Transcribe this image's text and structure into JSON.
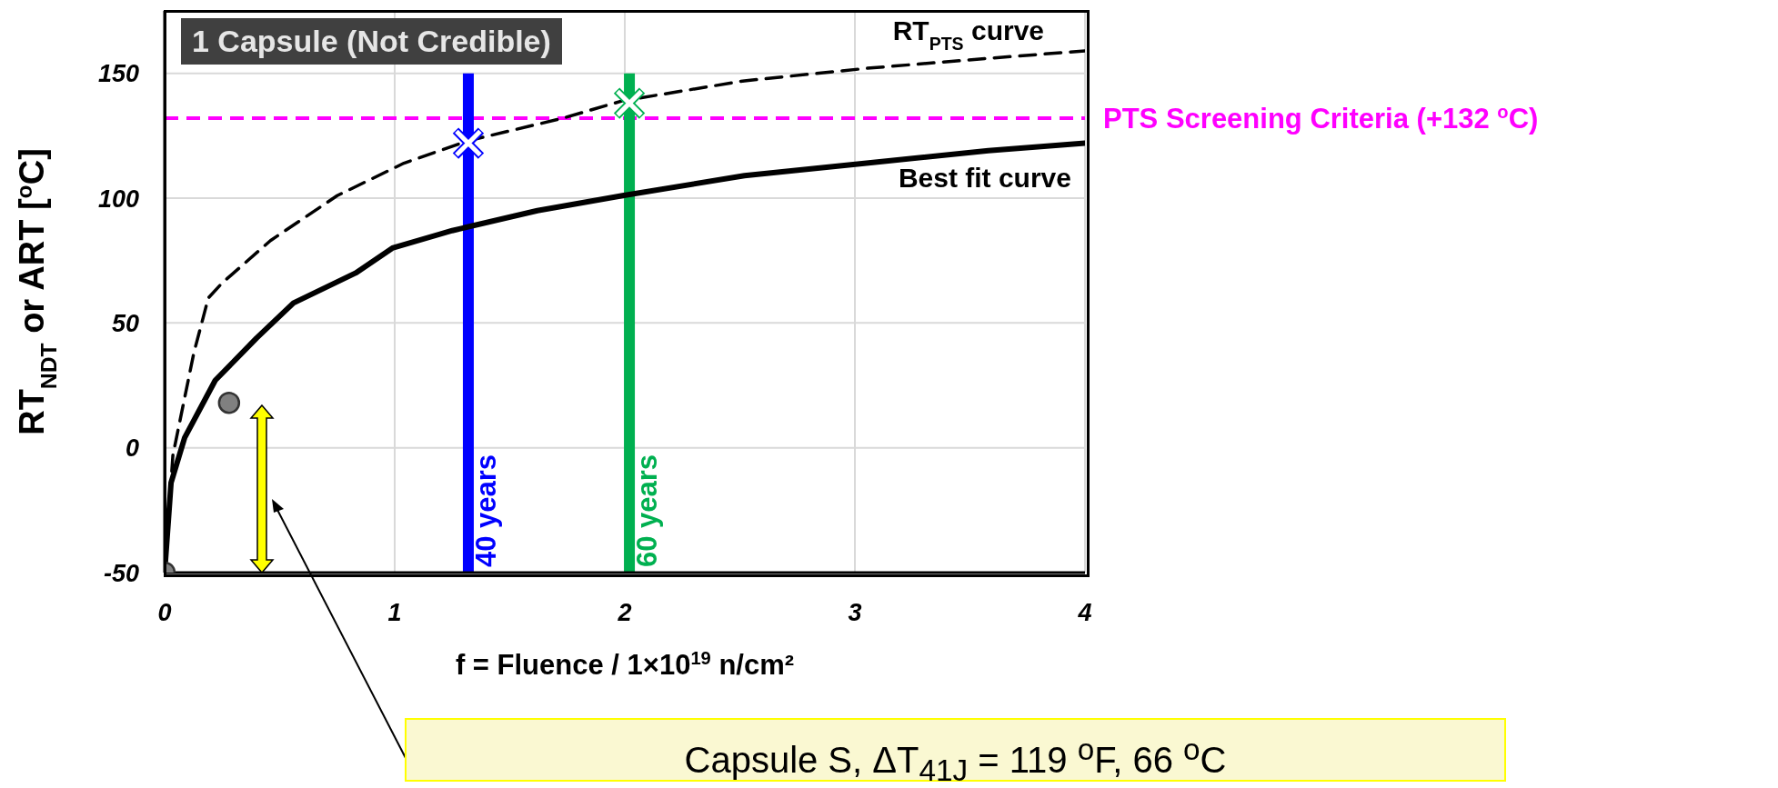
{
  "chart_data": {
    "type": "line",
    "xlabel": "f = Fluence / 1×10$^{19}$ n/cm²",
    "ylabel": "RT$_{NDT}$ or ART  [$^{o}$C]",
    "xlim": [
      0,
      4
    ],
    "xticks": [
      0,
      1,
      2,
      3,
      4
    ],
    "ylim": [
      -50,
      175
    ],
    "yticks": [
      -50,
      0,
      50,
      100,
      150
    ],
    "grid": true,
    "series": [
      {
        "name": "RT$_{PTS}$ curve",
        "color": "#000000",
        "line_style": "dashed",
        "marker": "none",
        "x": [
          0,
          0.036,
          0.127,
          0.19,
          0.25,
          0.46,
          0.75,
          1.04,
          1.32,
          1.73,
          1.99,
          2.52,
          3.05,
          3.58,
          4.0
        ],
        "values": [
          -50,
          -3,
          38,
          60,
          66,
          83,
          101,
          114,
          123,
          132,
          139,
          147,
          152,
          156,
          159
        ]
      },
      {
        "name": "Best fit curve",
        "color": "#000000",
        "line_style": "solid",
        "marker": "none",
        "x": [
          0,
          0.028,
          0.087,
          0.22,
          0.4,
          0.56,
          0.83,
          0.99,
          1.25,
          1.62,
          1.99,
          2.52,
          3.05,
          3.58,
          4.0
        ],
        "values": [
          -50,
          -14,
          4,
          27,
          44,
          58,
          70,
          80,
          87,
          95,
          101,
          109,
          114,
          119,
          122
        ]
      },
      {
        "type": "scatter",
        "color": "#808080",
        "marker": "circle",
        "x": [
          0,
          0.28
        ],
        "values": [
          -50,
          18
        ]
      },
      {
        "type": "scatter",
        "color": "#0000ff",
        "marker": "cross",
        "x": [
          1.32
        ],
        "values": [
          122
        ]
      },
      {
        "type": "scatter",
        "color": "#00b050",
        "marker": "cross",
        "x": [
          2.02
        ],
        "values": [
          138
        ]
      }
    ],
    "ref_lines": [
      {
        "axis": "y",
        "value": 132,
        "label": "PTS Screening Criteria (+132 $^{o}$C)",
        "color": "#ff00ff",
        "line_style": "dashed"
      },
      {
        "axis": "x",
        "value": 1.32,
        "label": "40 years",
        "color": "#0000ff",
        "line_style": "solid"
      },
      {
        "axis": "x",
        "value": 2.02,
        "label": "60 years",
        "color": "#00b050",
        "line_style": "solid"
      }
    ],
    "annotations": [
      "1 Capsule (Not Credible)",
      "Capsule S, ΔT$_{41J}$ = 119 $^{o}$F, 66 $^{o}$C"
    ]
  }
}
